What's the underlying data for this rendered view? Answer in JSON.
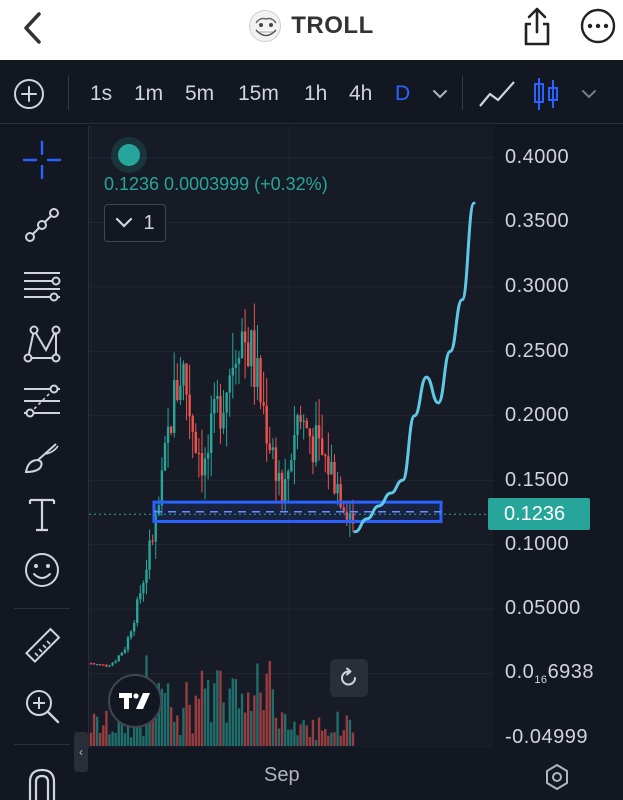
{
  "header": {
    "title": "TROLL",
    "back_icon": "chevron-left-icon",
    "share_icon": "share-icon",
    "more_icon": "more-horizontal-icon"
  },
  "toolbar": {
    "add_icon": "plus-circle-icon",
    "timeframes": [
      {
        "label": "1s",
        "active": false
      },
      {
        "label": "1m",
        "active": false
      },
      {
        "label": "5m",
        "active": false
      },
      {
        "label": "15m",
        "active": false
      },
      {
        "label": "1h",
        "active": false
      },
      {
        "label": "4h",
        "active": false
      },
      {
        "label": "D",
        "active": true
      }
    ],
    "active_color": "#2962ff",
    "chart_types": [
      "line-chart-icon",
      "candlestick-icon"
    ]
  },
  "left_tools": [
    "crosshair-icon",
    "trend-line-icon",
    "horizontal-lines-icon",
    "pattern-icon",
    "fib-retracement-icon",
    "brush-icon",
    "text-icon",
    "emoji-icon",
    "ruler-icon",
    "zoom-in-icon",
    "magnet-icon"
  ],
  "legend": {
    "values": "0.1236  0.0003999 (+0.32%)",
    "collapse_count": "1",
    "color": "#26a69a"
  },
  "price_axis": {
    "labels": [
      "0.4000",
      "0.3500",
      "0.3000",
      "0.2500",
      "0.2000",
      "0.1500",
      "0.1000",
      "0.05000",
      "-0.04999"
    ],
    "small_value_prefix": "0.0",
    "small_value_subscript": "16",
    "small_value_suffix": "6938",
    "current_price": "0.1236",
    "current_price_color": "#26a69a"
  },
  "time_axis": {
    "label": "Sep"
  },
  "colors": {
    "up": "#26a69a",
    "down": "#ef5350",
    "support_band": "#2962ff",
    "projection": "#5ec8e5",
    "background": "#131722"
  },
  "chart_data": {
    "type": "candlestick",
    "x": [
      "Sep"
    ],
    "ylim": [
      -0.04999,
      0.4
    ],
    "current_price": 0.1236,
    "support_zone": [
      0.118,
      0.133
    ],
    "approx_close_path": [
      0.008,
      0.006,
      0.009,
      0.02,
      0.05,
      0.09,
      0.13,
      0.2,
      0.24,
      0.19,
      0.16,
      0.2,
      0.23,
      0.27,
      0.25,
      0.21,
      0.17,
      0.14,
      0.2,
      0.19,
      0.17,
      0.16,
      0.14,
      0.12
    ],
    "hand_drawn_projection": [
      0.11,
      0.12,
      0.13,
      0.14,
      0.15,
      0.2,
      0.23,
      0.21,
      0.25,
      0.29,
      0.365
    ]
  }
}
